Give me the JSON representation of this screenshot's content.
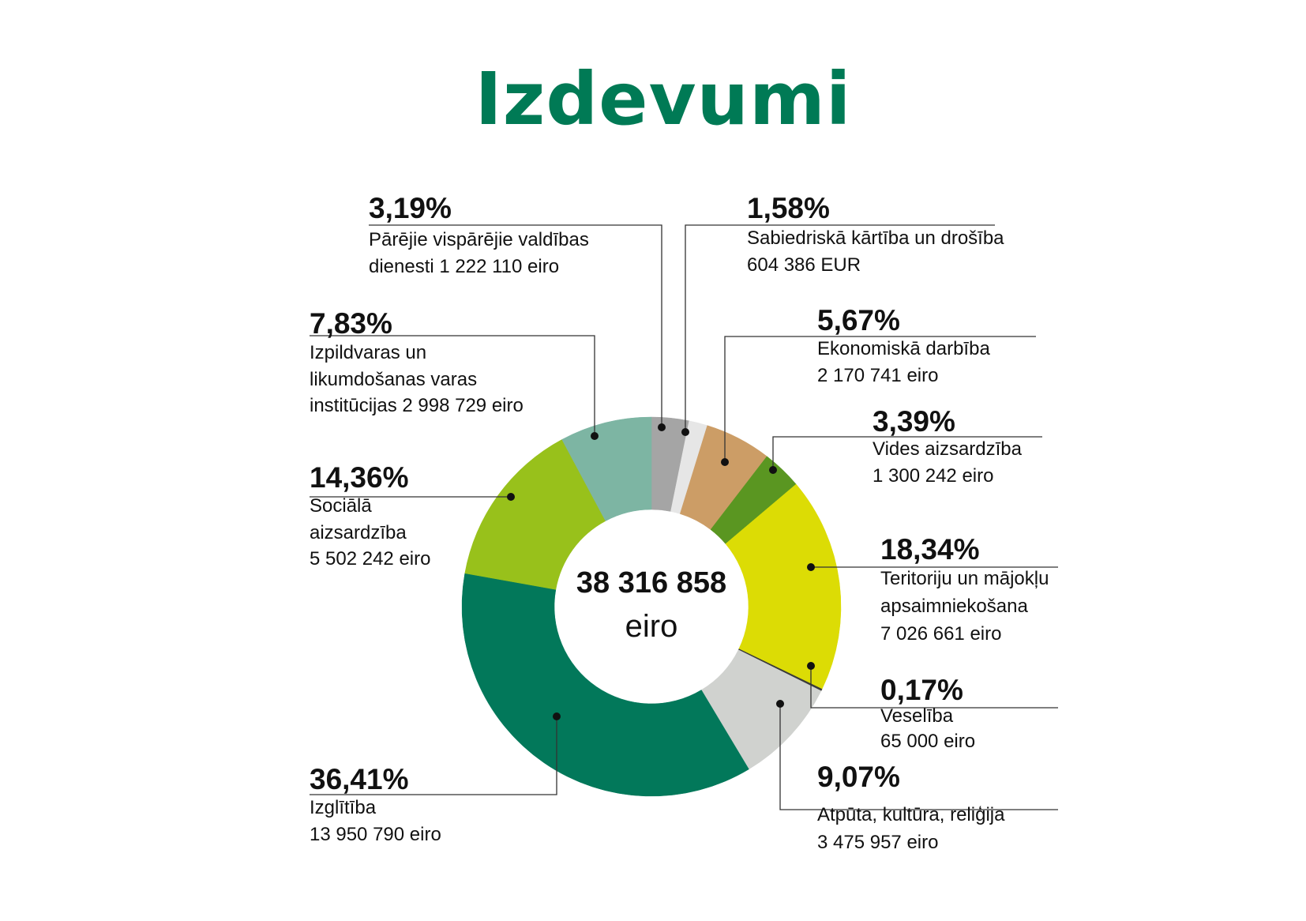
{
  "title": "Izdevumi",
  "center": {
    "total": "38 316 858",
    "unit": "eiro"
  },
  "chart_data": {
    "type": "pie",
    "title": "Izdevumi",
    "total": 38316858,
    "slices": [
      {
        "key": "public_services",
        "pct_label": "3,19%",
        "desc": "Pārējie vispārējie valdības\ndienesti 1 222 110 eiro",
        "value": 1222110,
        "color": "#a5a5a5"
      },
      {
        "key": "public_order",
        "pct_label": "1,58%",
        "desc": "Sabiedriskā kārtība un drošība\n604 386 EUR",
        "value": 604386,
        "color": "#e6e6e6"
      },
      {
        "key": "economic",
        "pct_label": "5,67%",
        "desc": "Ekonomiskā darbība\n2 170 741 eiro",
        "value": 2170741,
        "color": "#cc9d66"
      },
      {
        "key": "environment",
        "pct_label": "3,39%",
        "desc": "Vides aizsardzība\n1 300 242 eiro",
        "value": 1300242,
        "color": "#5a9621"
      },
      {
        "key": "housing",
        "pct_label": "18,34%",
        "desc": "Teritoriju un mājokļu\napsaimniekošana\n7 026 661 eiro",
        "value": 7026661,
        "color": "#dcdc05"
      },
      {
        "key": "health",
        "pct_label": "0,17%",
        "desc": "Veselība\n65 000 eiro",
        "value": 65000,
        "color": "#3a3a3a"
      },
      {
        "key": "recreation",
        "pct_label": "9,07%",
        "desc": "Atpūta, kultūra, reliģija\n3 475 957 eiro",
        "value": 3475957,
        "color": "#d0d2cf"
      },
      {
        "key": "education",
        "pct_label": "36,41%",
        "desc": "Izglītība\n13 950 790 eiro",
        "value": 13950790,
        "color": "#02785a"
      },
      {
        "key": "social",
        "pct_label": "14,36%",
        "desc": "Sociālā\naizsardzība\n5 502 242 eiro",
        "value": 5502242,
        "color": "#98c11b"
      },
      {
        "key": "executive",
        "pct_label": "7,83%",
        "desc": "Izpildvaras un\nlikumdošanas varas\ninstitūcijas 2 998 729 eiro",
        "value": 2998729,
        "color": "#7db5a3"
      }
    ]
  }
}
